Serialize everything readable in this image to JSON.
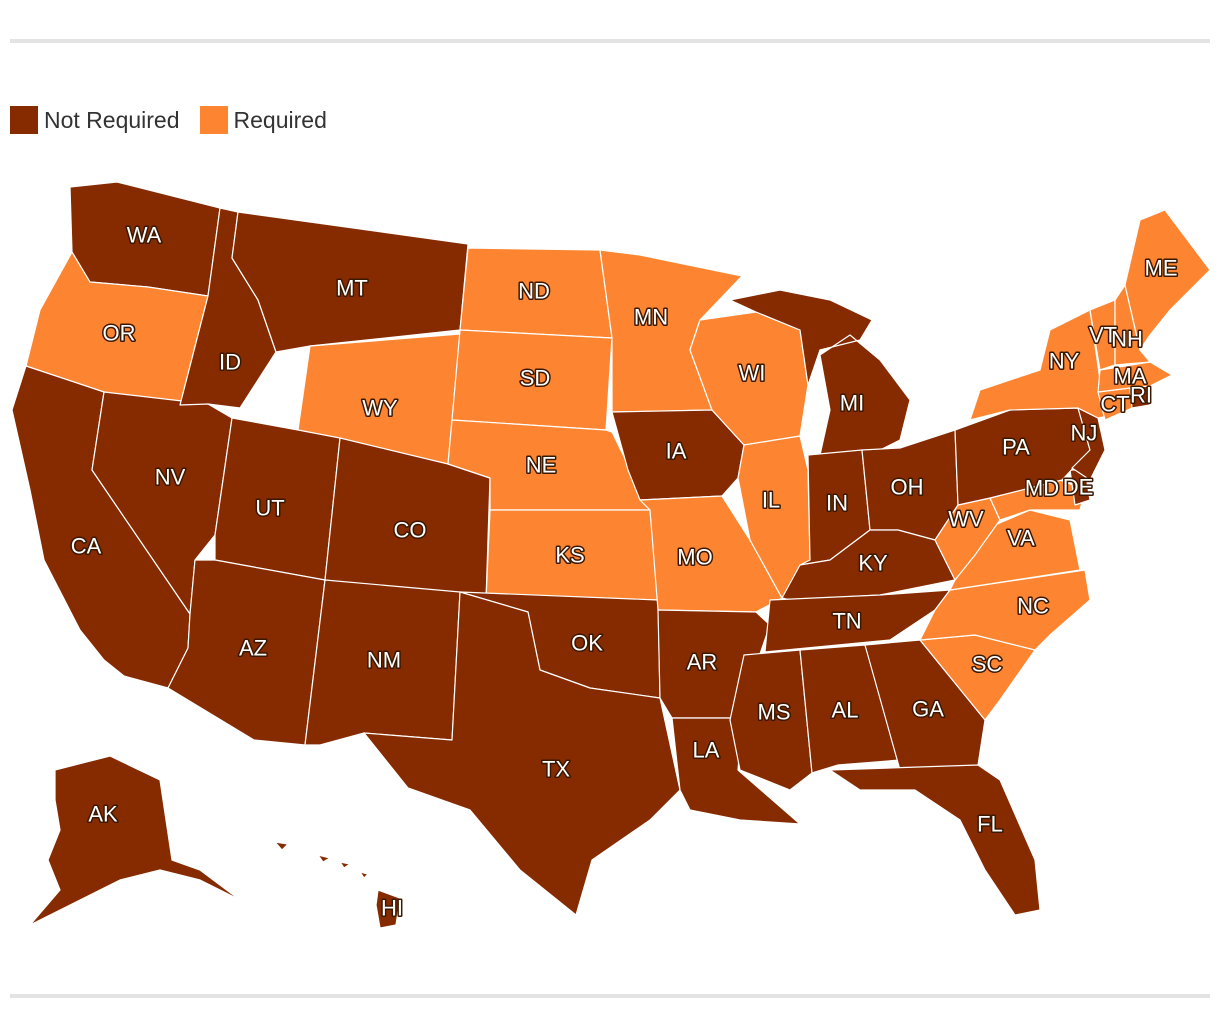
{
  "colors": {
    "not_required": "#862a00",
    "required": "#fd8531"
  },
  "legend": [
    {
      "label": "Not Required",
      "color": "#862a00"
    },
    {
      "label": "Required",
      "color": "#fd8531"
    }
  ],
  "states": [
    {
      "code": "WA",
      "status": "Not Required"
    },
    {
      "code": "OR",
      "status": "Required"
    },
    {
      "code": "CA",
      "status": "Not Required"
    },
    {
      "code": "NV",
      "status": "Not Required"
    },
    {
      "code": "ID",
      "status": "Not Required"
    },
    {
      "code": "MT",
      "status": "Not Required"
    },
    {
      "code": "WY",
      "status": "Required"
    },
    {
      "code": "UT",
      "status": "Not Required"
    },
    {
      "code": "AZ",
      "status": "Not Required"
    },
    {
      "code": "CO",
      "status": "Not Required"
    },
    {
      "code": "NM",
      "status": "Not Required"
    },
    {
      "code": "ND",
      "status": "Required"
    },
    {
      "code": "SD",
      "status": "Required"
    },
    {
      "code": "NE",
      "status": "Required"
    },
    {
      "code": "KS",
      "status": "Required"
    },
    {
      "code": "OK",
      "status": "Not Required"
    },
    {
      "code": "TX",
      "status": "Not Required"
    },
    {
      "code": "MN",
      "status": "Required"
    },
    {
      "code": "IA",
      "status": "Not Required"
    },
    {
      "code": "MO",
      "status": "Required"
    },
    {
      "code": "AR",
      "status": "Not Required"
    },
    {
      "code": "LA",
      "status": "Not Required"
    },
    {
      "code": "WI",
      "status": "Required"
    },
    {
      "code": "IL",
      "status": "Required"
    },
    {
      "code": "MI",
      "status": "Not Required"
    },
    {
      "code": "IN",
      "status": "Not Required"
    },
    {
      "code": "OH",
      "status": "Not Required"
    },
    {
      "code": "KY",
      "status": "Not Required"
    },
    {
      "code": "TN",
      "status": "Not Required"
    },
    {
      "code": "MS",
      "status": "Not Required"
    },
    {
      "code": "AL",
      "status": "Not Required"
    },
    {
      "code": "GA",
      "status": "Not Required"
    },
    {
      "code": "FL",
      "status": "Not Required"
    },
    {
      "code": "SC",
      "status": "Required"
    },
    {
      "code": "NC",
      "status": "Required"
    },
    {
      "code": "VA",
      "status": "Required"
    },
    {
      "code": "WV",
      "status": "Required"
    },
    {
      "code": "MD",
      "status": "Required"
    },
    {
      "code": "DE",
      "status": "Not Required"
    },
    {
      "code": "PA",
      "status": "Not Required"
    },
    {
      "code": "NJ",
      "status": "Not Required"
    },
    {
      "code": "NY",
      "status": "Required"
    },
    {
      "code": "CT",
      "status": "Required"
    },
    {
      "code": "RI",
      "status": "Not Required"
    },
    {
      "code": "MA",
      "status": "Required"
    },
    {
      "code": "VT",
      "status": "Required"
    },
    {
      "code": "NH",
      "status": "Required"
    },
    {
      "code": "ME",
      "status": "Required"
    },
    {
      "code": "AK",
      "status": "Not Required"
    },
    {
      "code": "HI",
      "status": "Not Required"
    }
  ]
}
